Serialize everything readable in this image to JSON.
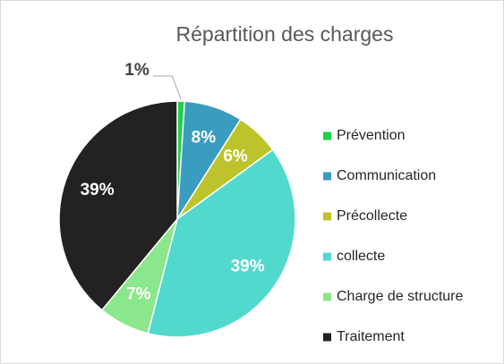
{
  "chart_data": {
    "type": "pie",
    "title": "Répartition des charges",
    "categories": [
      "Prévention",
      "Communication",
      "Précollecte",
      "collecte",
      "Charge de structure",
      "Traitement"
    ],
    "values": [
      1,
      8,
      6,
      39,
      7,
      39
    ],
    "value_labels": [
      "1%",
      "8%",
      "6%",
      "39%",
      "7%",
      "39%"
    ],
    "colors": [
      "#1fd14a",
      "#3a9cbe",
      "#bdc42b",
      "#52d9cd",
      "#8be78b",
      "#222222"
    ],
    "legend": "right"
  }
}
